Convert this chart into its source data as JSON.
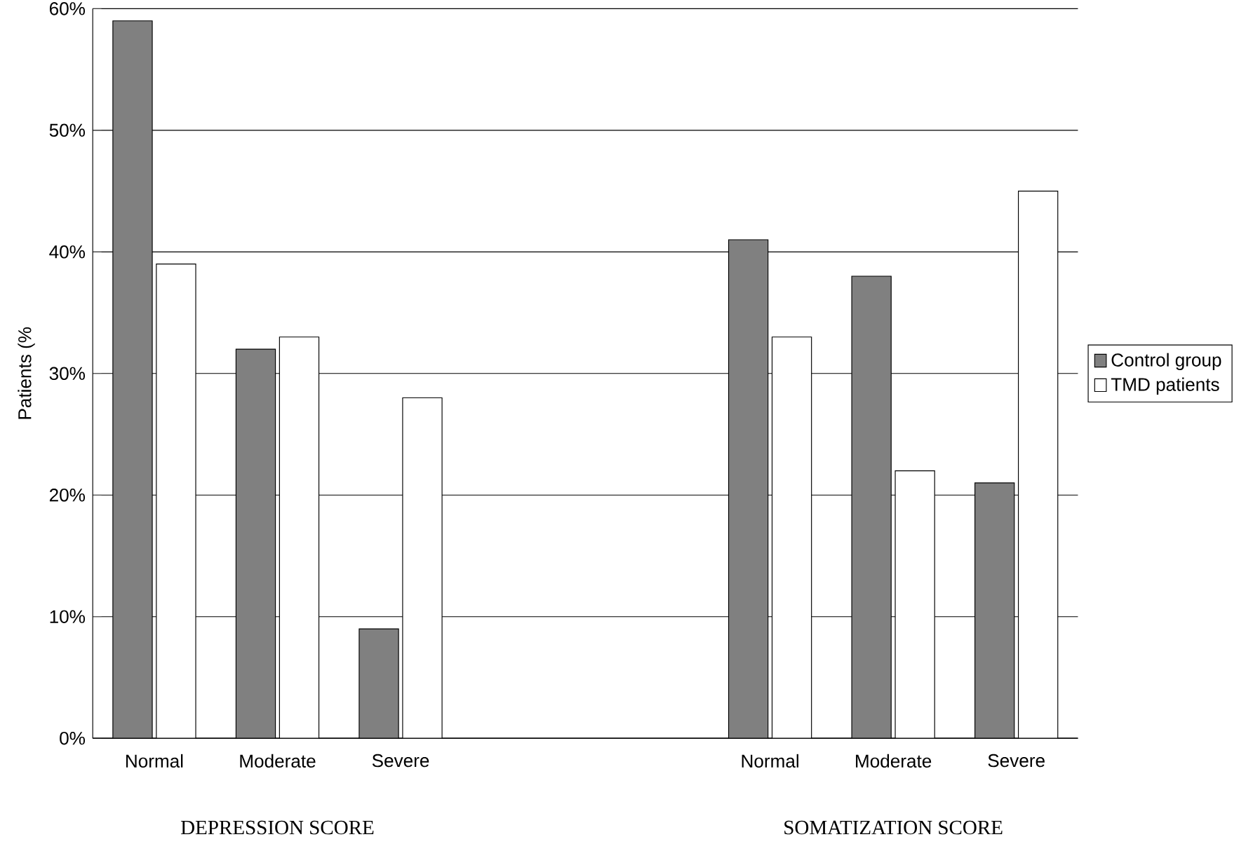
{
  "chart_data": {
    "type": "bar",
    "ylabel": "Patients (%",
    "categories": [
      "Normal",
      "Moderate",
      "Severe",
      null,
      null,
      "Normal",
      "Moderate",
      "Severe"
    ],
    "series": [
      {
        "name": "Control group",
        "color": "#808080",
        "values": [
          59,
          32,
          9,
          null,
          null,
          41,
          38,
          21
        ]
      },
      {
        "name": "TMD patients",
        "color": "#ffffff",
        "values": [
          39,
          33,
          28,
          null,
          null,
          33,
          22,
          45
        ]
      }
    ],
    "ylim": [
      0,
      60
    ],
    "yticks": [
      {
        "value": 0,
        "label": "0%"
      },
      {
        "value": 10,
        "label": "10%"
      },
      {
        "value": 20,
        "label": "20%"
      },
      {
        "value": 30,
        "label": "30%"
      },
      {
        "value": 40,
        "label": "40%"
      },
      {
        "value": 50,
        "label": "50%"
      },
      {
        "value": 60,
        "label": "60%"
      }
    ],
    "grid": "y",
    "legend": "right",
    "annotations": [
      "DEPRESSION SCORE",
      "SOMATIZATION SCORE"
    ]
  }
}
